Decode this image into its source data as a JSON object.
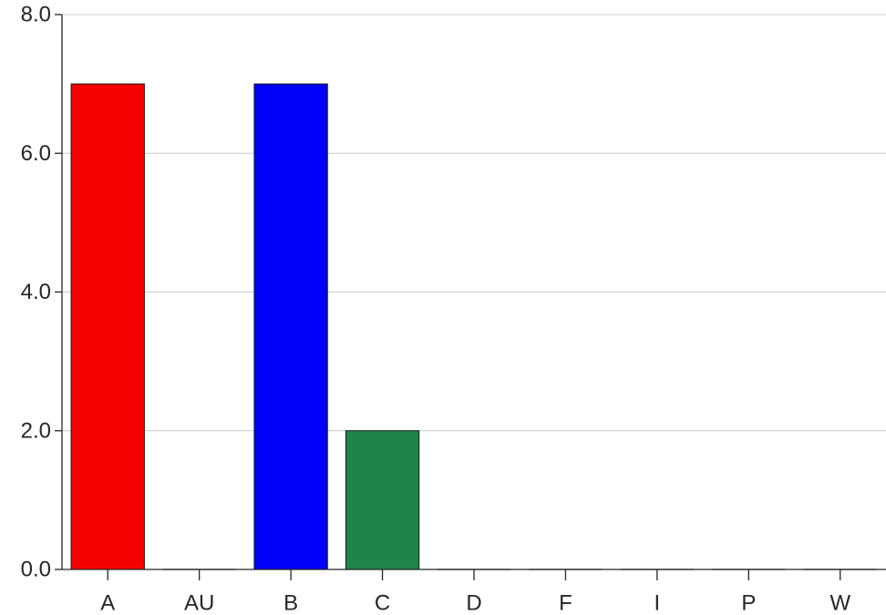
{
  "chart_data": {
    "type": "bar",
    "title": "",
    "xlabel": "",
    "ylabel": "",
    "categories": [
      "A",
      "AU",
      "B",
      "C",
      "D",
      "F",
      "I",
      "P",
      "W"
    ],
    "values": [
      7,
      0,
      7,
      2,
      0,
      0,
      0,
      0,
      0
    ],
    "colors": [
      "#f50000",
      "#000000",
      "#0000f7",
      "#1e844a",
      "#000000",
      "#000000",
      "#000000",
      "#000000",
      "#000000"
    ],
    "ylim": [
      0,
      8
    ],
    "yticks": [
      0,
      2,
      4,
      6,
      8
    ],
    "ytick_labels": [
      "0.0",
      "2.0",
      "4.0",
      "6.0",
      "8.0"
    ],
    "grid": "horizontal",
    "legend": "none"
  }
}
